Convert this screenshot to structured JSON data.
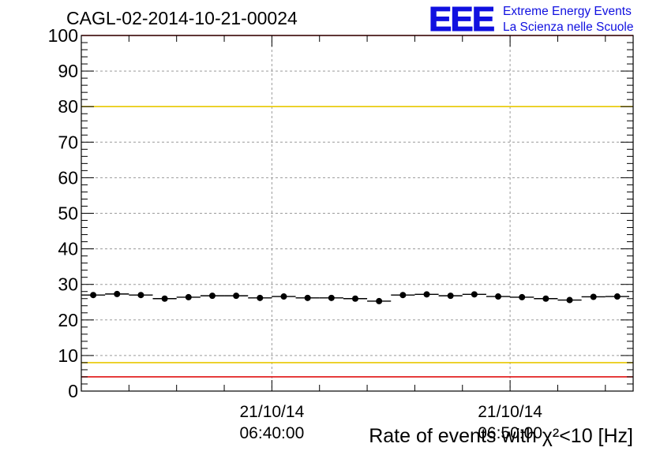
{
  "title": "CAGL-02-2014-10-21-00024",
  "logo": {
    "mark": "EEE",
    "line1": "Extreme Energy Events",
    "line2": "La Scienza nelle Scuole",
    "color": "#1010e0"
  },
  "colors": {
    "frame": "#000000",
    "grid": "#9a9a9a",
    "red_line": "#e01010",
    "yellow_line": "#e8c800",
    "marker": "#000000"
  },
  "chart_data": {
    "type": "scatter",
    "title": "CAGL-02-2014-10-21-00024",
    "xlabel": "Rate of events with χ²<10 [Hz]",
    "ylabel": "",
    "ylim": [
      0,
      100
    ],
    "y_ticks": [
      "0",
      "10",
      "20",
      "30",
      "40",
      "50",
      "60",
      "70",
      "80",
      "90",
      "100"
    ],
    "x_ticks": [
      {
        "date": "21/10/14",
        "time": "06:40:00"
      },
      {
        "date": "21/10/14",
        "time": "06:50:00"
      }
    ],
    "grid": true,
    "reference_lines": [
      {
        "color": "red",
        "y": 100
      },
      {
        "color": "yellow",
        "y": 80
      },
      {
        "color": "yellow",
        "y": 8
      },
      {
        "color": "red",
        "y": 4
      }
    ],
    "series": [
      {
        "x": [
          "06:32:30",
          "06:33:30",
          "06:34:30",
          "06:35:30",
          "06:36:30",
          "06:37:30",
          "06:38:30",
          "06:39:30",
          "06:40:30",
          "06:41:30",
          "06:42:30",
          "06:43:30",
          "06:44:30",
          "06:45:30",
          "06:46:30",
          "06:47:30",
          "06:48:30",
          "06:49:30",
          "06:50:30",
          "06:51:30",
          "06:52:30",
          "06:53:30",
          "06:54:30"
        ],
        "values": [
          27.0,
          27.3,
          27.0,
          26.0,
          26.4,
          26.8,
          26.8,
          26.2,
          26.6,
          26.2,
          26.2,
          26.0,
          25.3,
          27.0,
          27.2,
          26.8,
          27.2,
          26.6,
          26.4,
          26.0,
          25.6,
          26.5,
          26.6
        ]
      }
    ]
  }
}
